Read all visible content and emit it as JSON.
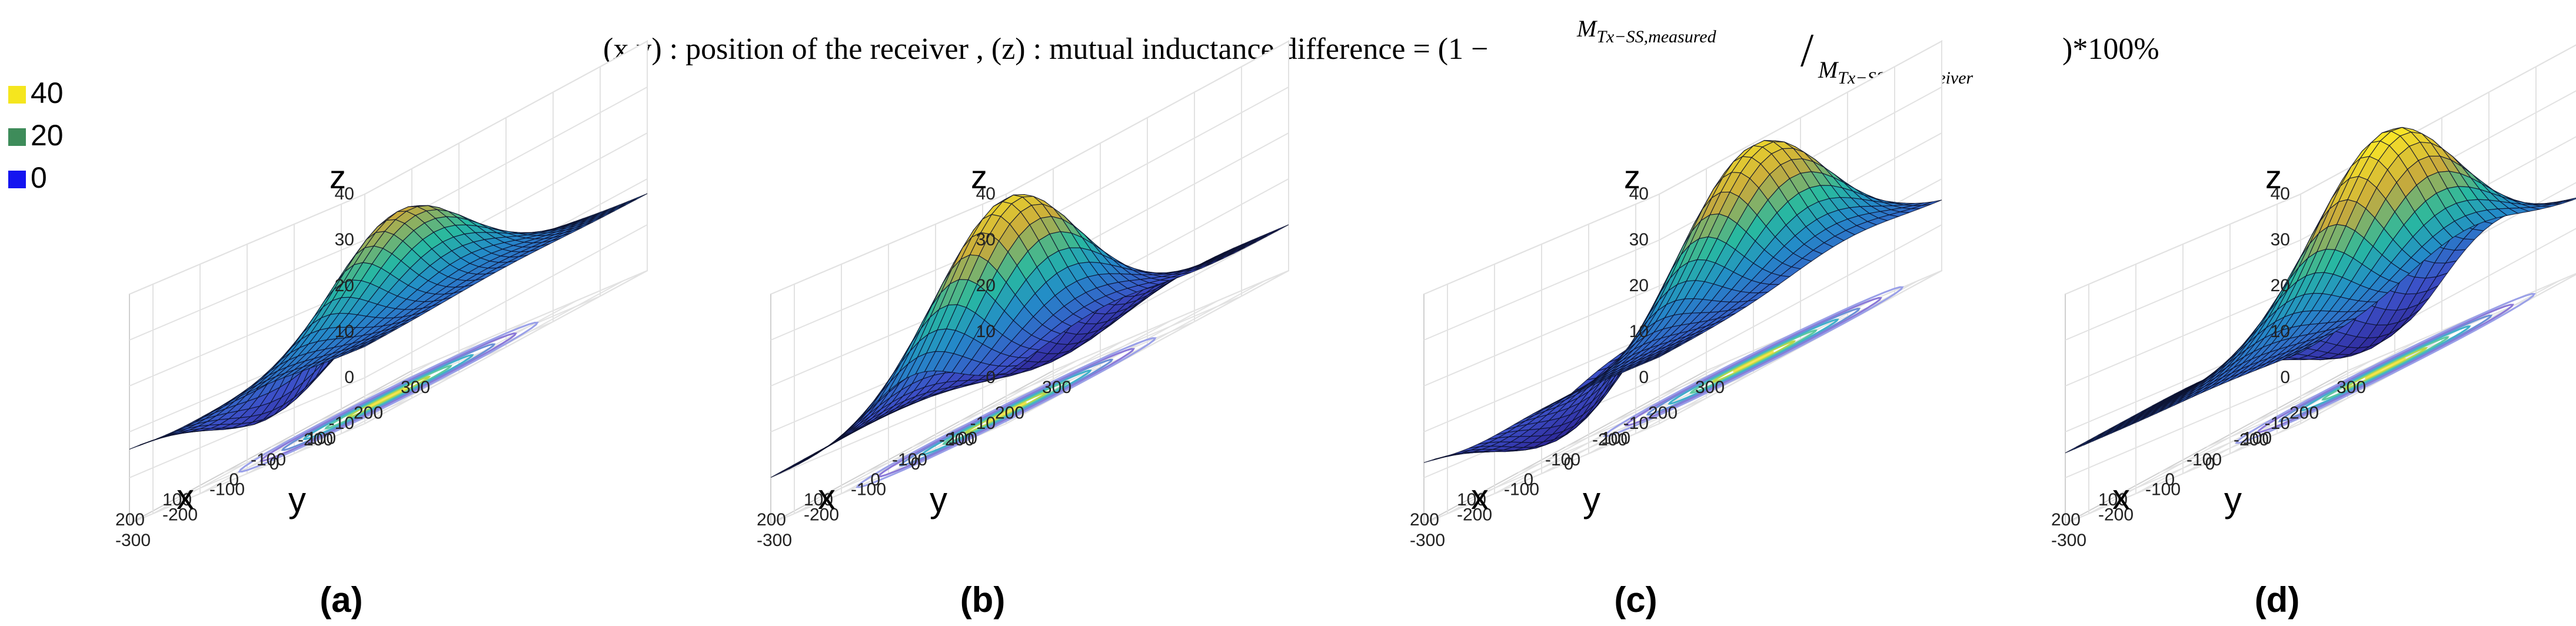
{
  "header": {
    "lead": "(x,y) : position of the receiver , (z) : mutual inductance difference = (1 −",
    "numerator": "M",
    "numerator_sub": "Tx−SS,measured",
    "slash": "/",
    "denominator": "M",
    "denominator_sub": "Tx−SS,no_receiver",
    "tail": ")*100%"
  },
  "legend": {
    "entries": [
      {
        "label": "40",
        "color": "#f5e61e"
      },
      {
        "label": "20",
        "color": "#3e8c5a"
      },
      {
        "label": "0",
        "color": "#1414f0"
      }
    ]
  },
  "chart_data": [
    {
      "type": "surface3d",
      "panel_label": "(a)",
      "xlabel": "x",
      "ylabel": "y",
      "zlabel": "z",
      "xlim": [
        -250,
        250
      ],
      "ylim": [
        -300,
        300
      ],
      "zlim": [
        -10,
        40
      ],
      "x_ticks": [
        "200",
        "100",
        "0",
        "-100",
        "-200"
      ],
      "y_ticks": [
        "-300",
        "-200",
        "-100",
        "0",
        "100",
        "200",
        "300"
      ],
      "z_ticks": [
        "40",
        "30",
        "20",
        "10",
        "0",
        "-10"
      ],
      "peak": {
        "x": 0,
        "y": 0,
        "z": 30
      },
      "trough": {
        "x": 150,
        "y": -50,
        "z": -8
      },
      "corner_level": 15
    },
    {
      "type": "surface3d",
      "panel_label": "(b)",
      "xlabel": "x",
      "ylabel": "y",
      "zlabel": "z",
      "xlim": [
        -250,
        250
      ],
      "ylim": [
        -300,
        300
      ],
      "zlim": [
        -10,
        40
      ],
      "x_ticks": [
        "200",
        "100",
        "0",
        "-100",
        "-200"
      ],
      "y_ticks": [
        "-300",
        "-200",
        "-100",
        "0",
        "100",
        "200",
        "300"
      ],
      "z_ticks": [
        "40",
        "30",
        "20",
        "10",
        "0",
        "-10"
      ],
      "peak": {
        "x": -50,
        "y": -100,
        "z": 37
      },
      "trough": {
        "x": 100,
        "y": 150,
        "z": -8
      },
      "corner_level": 0
    },
    {
      "type": "surface3d",
      "panel_label": "(c)",
      "xlabel": "x",
      "ylabel": "y",
      "zlabel": "z",
      "xlim": [
        -250,
        250
      ],
      "ylim": [
        -300,
        300
      ],
      "zlim": [
        -10,
        40
      ],
      "x_ticks": [
        "200",
        "100",
        "0",
        "-100",
        "-200"
      ],
      "y_ticks": [
        "-300",
        "-200",
        "-100",
        "0",
        "100",
        "200",
        "300"
      ],
      "z_ticks": [
        "40",
        "30",
        "20",
        "10",
        "0",
        "-10"
      ],
      "peak": {
        "x": -50,
        "y": 100,
        "z": 36
      },
      "trough": {
        "x": 150,
        "y": -100,
        "z": -8
      },
      "corner_level": 10
    },
    {
      "type": "surface3d",
      "panel_label": "(d)",
      "xlabel": "x",
      "ylabel": "y",
      "zlabel": "z",
      "xlim": [
        -250,
        250
      ],
      "ylim": [
        -300,
        300
      ],
      "zlim": [
        -10,
        40
      ],
      "x_ticks": [
        "200",
        "100",
        "0",
        "-100",
        "-200"
      ],
      "y_ticks": [
        "-300",
        "-200",
        "-100",
        "0",
        "100",
        "200",
        "300"
      ],
      "z_ticks": [
        "40",
        "30",
        "20",
        "10",
        "0",
        "-10"
      ],
      "peak": {
        "x": -80,
        "y": 50,
        "z": 40
      },
      "trough": {
        "x": 150,
        "y": 250,
        "z": -8
      },
      "corner_level": 12
    }
  ]
}
